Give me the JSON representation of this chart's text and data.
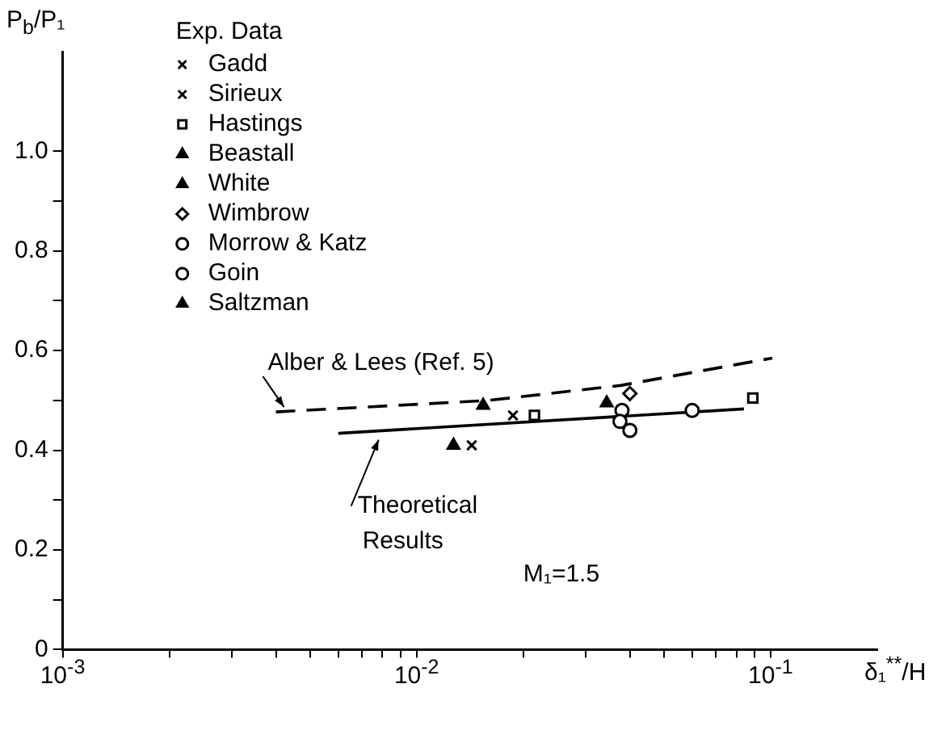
{
  "chart_data": {
    "type": "scatter",
    "legend_title": "Exp. Data",
    "xlabel": "δ₁$^{**}$/H",
    "ylabel": "P$_{b}$/P₁",
    "log": "x",
    "legend": "top left",
    "annotations": [
      "M₁=1.5"
    ],
    "xlim": [
      0.001,
      0.2
    ],
    "xticks": [
      {
        "value": 0.001,
        "label": "10$^{-3}$"
      },
      {
        "value": 0.002,
        "label": null
      },
      {
        "value": 0.003,
        "label": null
      },
      {
        "value": 0.004,
        "label": null
      },
      {
        "value": 0.005,
        "label": null
      },
      {
        "value": 0.006,
        "label": null
      },
      {
        "value": 0.007,
        "label": null
      },
      {
        "value": 0.008,
        "label": null
      },
      {
        "value": 0.009,
        "label": null
      },
      {
        "value": 0.01,
        "label": "10$^{-2}$"
      },
      {
        "value": 0.02,
        "label": null
      },
      {
        "value": 0.03,
        "label": null
      },
      {
        "value": 0.04,
        "label": null
      },
      {
        "value": 0.05,
        "label": null
      },
      {
        "value": 0.06,
        "label": null
      },
      {
        "value": 0.07,
        "label": null
      },
      {
        "value": 0.08,
        "label": null
      },
      {
        "value": 0.09,
        "label": null
      },
      {
        "value": 0.1,
        "label": "10$^{-1}$"
      }
    ],
    "ylim": [
      0,
      1.2
    ],
    "yticks": [
      0,
      {
        "value": 0.1,
        "label": null
      },
      0.2,
      {
        "value": 0.3,
        "label": null
      },
      0.4,
      {
        "value": 0.5,
        "label": null
      },
      0.6,
      {
        "value": 0.7,
        "label": null
      },
      0.8,
      {
        "value": 0.9,
        "label": null
      },
      {
        "value": 1,
        "label": "1.0"
      }
    ],
    "series": [
      {
        "name": "Gadd",
        "color": "#000000",
        "marker": "cross",
        "x": [
          0.0143
        ],
        "values": [
          0.41
        ]
      },
      {
        "name": "Sirieux",
        "color": "#000000",
        "marker": "cross",
        "x": [
          0.0187
        ],
        "values": [
          0.47
        ]
      },
      {
        "name": "Hastings",
        "color": "#000000",
        "marker": "square",
        "x": [
          0.0215,
          0.089
        ],
        "values": [
          0.47,
          0.505
        ]
      },
      {
        "name": "Beastall",
        "color": "#000000",
        "marker": "triangle",
        "x": [
          0.0344
        ],
        "values": [
          0.495
        ]
      },
      {
        "name": "White",
        "color": "#000000",
        "marker": "triangle",
        "x": [
          0.0127
        ],
        "values": [
          0.41
        ]
      },
      {
        "name": "Wimbrow",
        "color": "#000000",
        "marker": "diamond",
        "x": [
          0.04
        ],
        "values": [
          0.514
        ]
      },
      {
        "name": "Morrow & Katz",
        "color": "#000000",
        "marker": "circle",
        "x": [
          0.06
        ],
        "values": [
          0.48
        ]
      },
      {
        "name": "Goin",
        "color": "#000000",
        "marker": "circle",
        "x": [
          0.038,
          0.0375,
          0.04
        ],
        "values": [
          0.48,
          0.458,
          0.44
        ]
      },
      {
        "name": "Saltzman",
        "color": "#000000",
        "marker": "triangle",
        "x": [
          0.0154
        ],
        "values": [
          0.49
        ]
      },
      {
        "name": "Alber & Lees (Ref. 5)",
        "type": "line",
        "color": "#000000",
        "marker": "none",
        "line_style": "dashed",
        "x": [
          0.004,
          0.0159,
          0.0376,
          0.101
        ],
        "values": [
          0.477,
          0.5,
          0.53,
          0.585
        ]
      },
      {
        "name": "Theoretical Results",
        "type": "line",
        "color": "#000000",
        "marker": "none",
        "line_style": "solid",
        "x": [
          0.006,
          0.084
        ],
        "values": [
          0.434,
          0.483
        ]
      }
    ]
  }
}
